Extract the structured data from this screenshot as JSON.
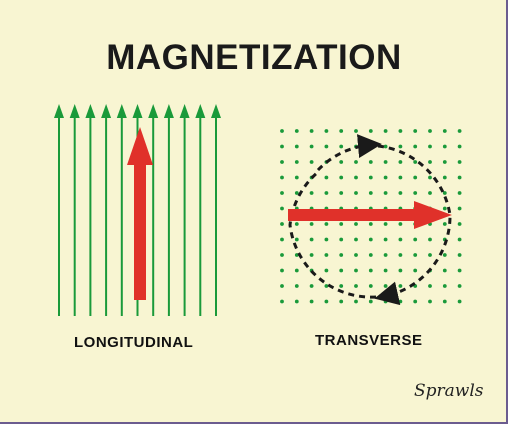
{
  "title": "MAGNETIZATION",
  "labels": {
    "longitudinal": "LONGITUDINAL",
    "transverse": "TRANSVERSE"
  },
  "signature": "Sprawls",
  "colors": {
    "background": "#f8f5d2",
    "field_lines": "#1a9a3a",
    "magnetization_arrow": "#e0312a",
    "precession_path": "#1a1a1a",
    "text": "#1a1a1a"
  },
  "icons": {
    "longitudinal_field": "vertical-field-lines-with-arrowheads",
    "transverse_field": "dot-grid-field-out-of-plane",
    "magnetization_vector": "thick-red-arrow",
    "precession": "dashed-circular-arrow"
  }
}
